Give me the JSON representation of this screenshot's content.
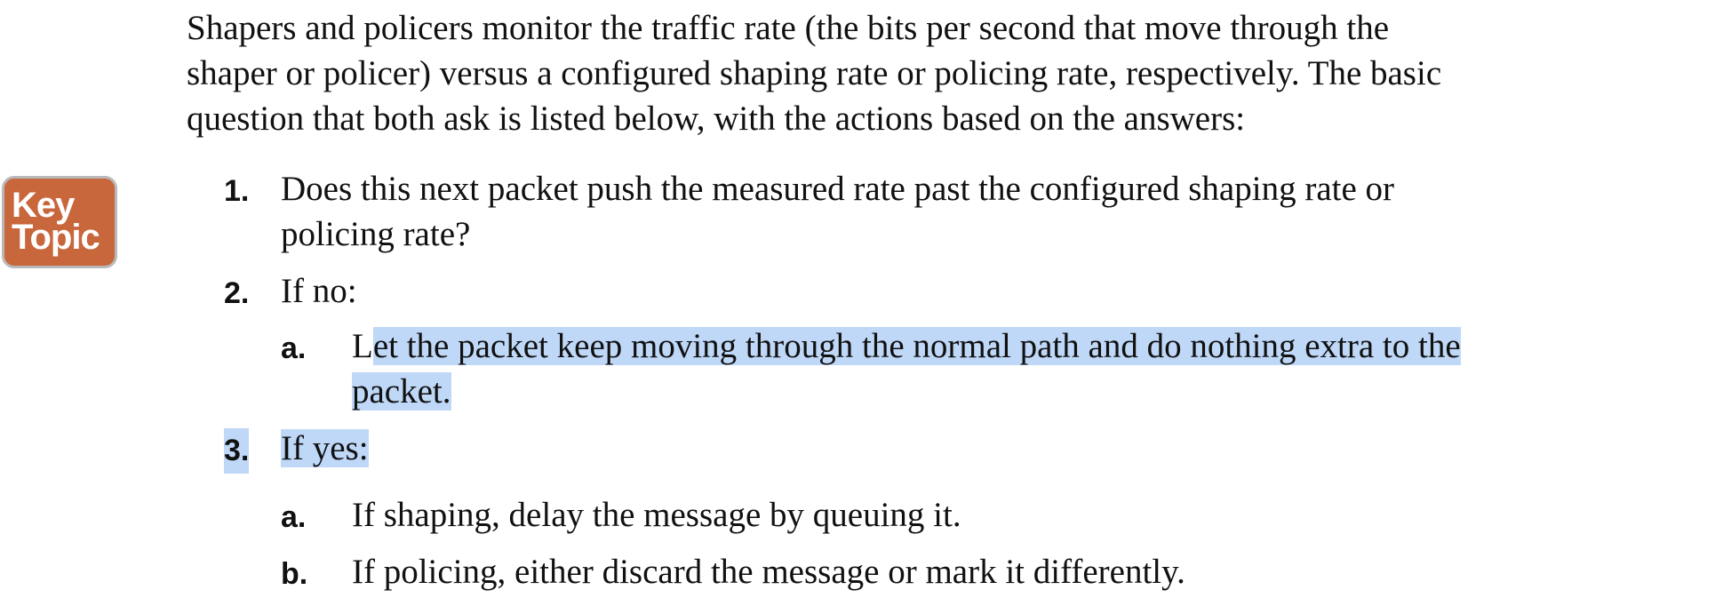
{
  "intro": {
    "line1": "Shapers and policers monitor the traffic rate (the bits per second that move through the",
    "line2": "shaper or policer) versus a configured shaping rate or policing rate, respectively. The basic",
    "line3": "question that both ask is listed below, with the actions based on the answers:"
  },
  "key_topic": {
    "line1": "Key",
    "line2": "Topic"
  },
  "list": {
    "item1": {
      "num": "1.",
      "line1": "Does this next packet push the measured rate past the configured shaping rate or",
      "line2": "policing rate?"
    },
    "item2": {
      "num": "2.",
      "text": "If no:",
      "sub_a": {
        "num": "a.",
        "line1_start": "L",
        "line1_rest": "et the packet keep moving through the normal path and do nothing extra to the",
        "line2": "packet."
      }
    },
    "item3": {
      "num": "3.",
      "text": "If yes:",
      "sub_a": {
        "num": "a.",
        "text": "If shaping, delay the message by queuing it."
      },
      "sub_b": {
        "num": "b.",
        "text": "If policing, either discard the message or mark it differently."
      }
    }
  }
}
